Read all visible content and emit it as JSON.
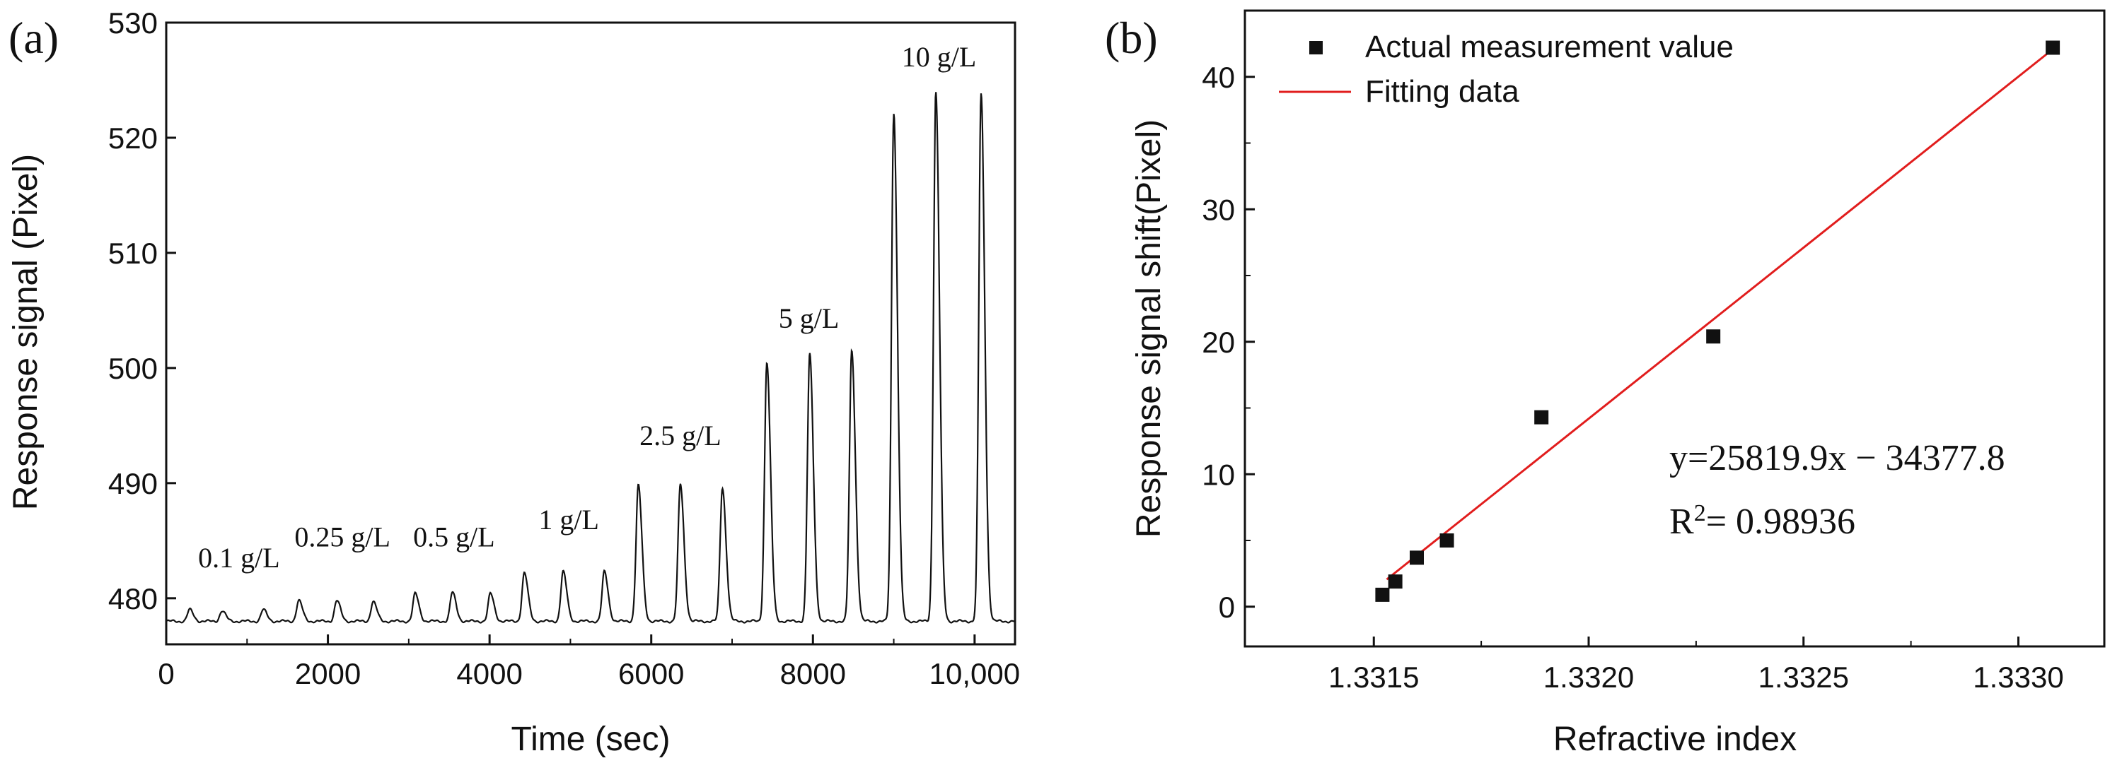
{
  "chart_data": [
    {
      "panel_label": "(a)",
      "type": "line",
      "xlabel": "Time (sec)",
      "ylabel": "Response signal (Pixel)",
      "xlim": [
        0,
        10500
      ],
      "ylim": [
        476,
        530
      ],
      "xticks": [
        0,
        2000,
        4000,
        6000,
        8000,
        10000
      ],
      "xtick_labels": [
        "0",
        "2000",
        "4000",
        "6000",
        "8000",
        "10,000"
      ],
      "yticks": [
        480,
        490,
        500,
        510,
        520,
        530
      ],
      "ytick_labels": [
        "480",
        "490",
        "500",
        "510",
        "520",
        "530"
      ],
      "baseline": 478,
      "peaks": [
        {
          "t": 290,
          "v": 479.0
        },
        {
          "t": 690,
          "v": 478.9
        },
        {
          "t": 1200,
          "v": 479.0
        },
        {
          "t": 1640,
          "v": 479.8
        },
        {
          "t": 2110,
          "v": 479.8
        },
        {
          "t": 2560,
          "v": 479.7
        },
        {
          "t": 3080,
          "v": 480.4
        },
        {
          "t": 3540,
          "v": 480.5
        },
        {
          "t": 4010,
          "v": 480.4
        },
        {
          "t": 4430,
          "v": 482.2
        },
        {
          "t": 4910,
          "v": 482.3
        },
        {
          "t": 5420,
          "v": 482.3
        },
        {
          "t": 5840,
          "v": 489.8
        },
        {
          "t": 6360,
          "v": 489.9
        },
        {
          "t": 6880,
          "v": 489.6
        },
        {
          "t": 7430,
          "v": 500.5
        },
        {
          "t": 7960,
          "v": 501.2
        },
        {
          "t": 8480,
          "v": 501.5
        },
        {
          "t": 9000,
          "v": 522.2
        },
        {
          "t": 9520,
          "v": 524.0
        },
        {
          "t": 10080,
          "v": 523.8
        }
      ],
      "annotations": [
        {
          "text": "0.1 g/L",
          "t": 900,
          "v": 482.7
        },
        {
          "text": "0.25 g/L",
          "t": 2180,
          "v": 484.5
        },
        {
          "text": "0.5 g/L",
          "t": 3560,
          "v": 484.5
        },
        {
          "text": "1 g/L",
          "t": 4980,
          "v": 486.0
        },
        {
          "text": "2.5 g/L",
          "t": 6360,
          "v": 493.3
        },
        {
          "text": "5 g/L",
          "t": 7950,
          "v": 503.5
        },
        {
          "text": "10 g/L",
          "t": 9560,
          "v": 526.2
        }
      ]
    },
    {
      "panel_label": "(b)",
      "type": "scatter",
      "xlabel": "Refractive index",
      "ylabel": "Response signal shift(Pixel)",
      "xlim": [
        1.3312,
        1.3332
      ],
      "ylim": [
        -3,
        45
      ],
      "xticks": [
        1.3315,
        1.332,
        1.3325,
        1.333
      ],
      "xtick_labels": [
        "1.3315",
        "1.3320",
        "1.3325",
        "1.3330"
      ],
      "yticks": [
        0,
        10,
        20,
        30,
        40
      ],
      "ytick_labels": [
        "0",
        "10",
        "20",
        "30",
        "40"
      ],
      "series": [
        {
          "name": "Actual measurement value",
          "x": [
            1.33152,
            1.33155,
            1.3316,
            1.33167,
            1.33189,
            1.33229,
            1.33308
          ],
          "y": [
            0.9,
            1.9,
            3.7,
            5.0,
            14.3,
            20.4,
            42.2
          ]
        },
        {
          "name": "Fitting data",
          "x": [
            1.33153,
            1.33308
          ],
          "y": [
            2.06,
            42.08
          ],
          "color": "#e11d1d"
        }
      ],
      "equation": "y=25819.9x − 34377.8",
      "r2_prefix": "R",
      "r2_superscript": "2",
      "r2_value": "= 0.98936",
      "legend_position": "top-left"
    }
  ]
}
